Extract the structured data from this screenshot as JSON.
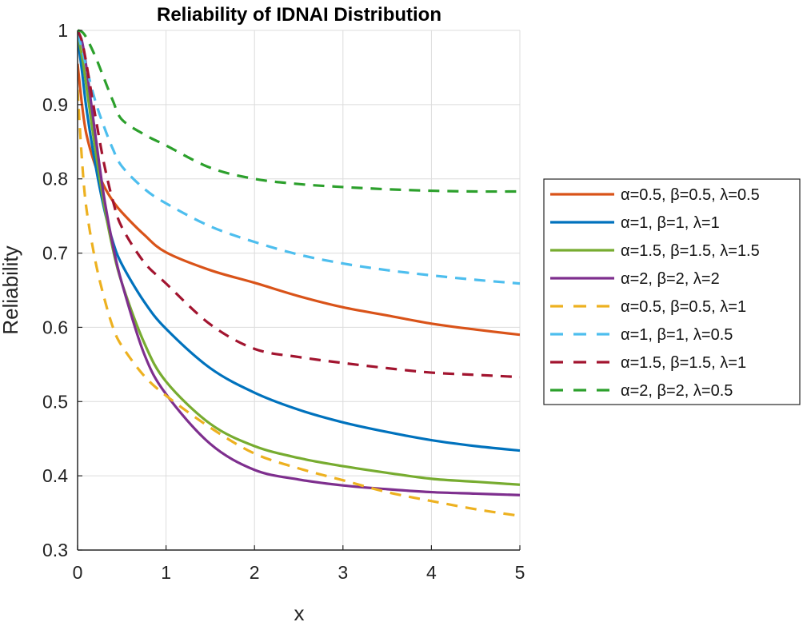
{
  "chart_data": {
    "type": "line",
    "title": "Reliability of IDNAI Distribution",
    "xlabel": "x",
    "ylabel": "Reliability",
    "xlim": [
      0,
      5
    ],
    "ylim": [
      0.3,
      1
    ],
    "xticks": [
      0,
      1,
      2,
      3,
      4,
      5
    ],
    "yticks": [
      0.3,
      0.4,
      0.5,
      0.6,
      0.7,
      0.8,
      0.9,
      1
    ],
    "xtick_labels": [
      "0",
      "1",
      "2",
      "3",
      "4",
      "5"
    ],
    "ytick_labels": [
      "0.3",
      "0.4",
      "0.5",
      "0.6",
      "0.7",
      "0.8",
      "0.9",
      "1"
    ],
    "grid": true,
    "legend_position": "right-outside",
    "x": [
      0,
      0.05,
      0.1,
      0.2,
      0.3,
      0.4,
      0.5,
      0.75,
      1,
      1.5,
      2,
      2.5,
      3,
      3.5,
      4,
      4.5,
      5
    ],
    "series": [
      {
        "name": "α=0.5, β=0.5, λ=0.5",
        "color": "#D95319",
        "style": "solid",
        "values": [
          0.955,
          0.9,
          0.86,
          0.818,
          0.79,
          0.77,
          0.755,
          0.725,
          0.701,
          0.677,
          0.66,
          0.642,
          0.627,
          0.616,
          0.605,
          0.597,
          0.59
        ]
      },
      {
        "name": "α=1, β=1, λ=1",
        "color": "#0072BD",
        "style": "solid",
        "values": [
          0.99,
          0.945,
          0.895,
          0.82,
          0.76,
          0.715,
          0.685,
          0.635,
          0.598,
          0.545,
          0.512,
          0.489,
          0.472,
          0.459,
          0.448,
          0.44,
          0.434
        ]
      },
      {
        "name": "α=1.5, β=1.5, λ=1.5",
        "color": "#77AC30",
        "style": "solid",
        "values": [
          0.995,
          0.965,
          0.925,
          0.84,
          0.765,
          0.705,
          0.66,
          0.58,
          0.527,
          0.47,
          0.44,
          0.424,
          0.413,
          0.404,
          0.396,
          0.392,
          0.388
        ]
      },
      {
        "name": "α=2, β=2, λ=2",
        "color": "#7E2F8E",
        "style": "solid",
        "values": [
          1.0,
          0.985,
          0.95,
          0.86,
          0.775,
          0.71,
          0.66,
          0.565,
          0.51,
          0.443,
          0.408,
          0.395,
          0.387,
          0.382,
          0.378,
          0.376,
          0.374
        ]
      },
      {
        "name": "α=0.5, β=0.5, λ=1",
        "color": "#EDB120",
        "style": "dashed",
        "values": [
          0.92,
          0.825,
          0.76,
          0.69,
          0.64,
          0.6,
          0.575,
          0.535,
          0.508,
          0.465,
          0.43,
          0.41,
          0.394,
          0.378,
          0.366,
          0.355,
          0.346
        ]
      },
      {
        "name": "α=1, β=1, λ=0.5",
        "color": "#4DBEEE",
        "style": "dashed",
        "values": [
          0.995,
          0.975,
          0.95,
          0.905,
          0.87,
          0.84,
          0.817,
          0.787,
          0.767,
          0.736,
          0.715,
          0.698,
          0.686,
          0.677,
          0.67,
          0.664,
          0.659
        ]
      },
      {
        "name": "α=1.5, β=1.5, λ=1",
        "color": "#A2142F",
        "style": "dashed",
        "values": [
          1.0,
          0.985,
          0.955,
          0.885,
          0.82,
          0.77,
          0.735,
          0.688,
          0.659,
          0.604,
          0.571,
          0.56,
          0.552,
          0.545,
          0.539,
          0.536,
          0.533
        ]
      },
      {
        "name": "α=2, β=2, λ=0.5",
        "color": "#2CA02C",
        "style": "dashed",
        "values": [
          1.0,
          0.998,
          0.99,
          0.965,
          0.935,
          0.905,
          0.88,
          0.86,
          0.845,
          0.815,
          0.8,
          0.793,
          0.789,
          0.786,
          0.784,
          0.783,
          0.783
        ]
      }
    ]
  }
}
